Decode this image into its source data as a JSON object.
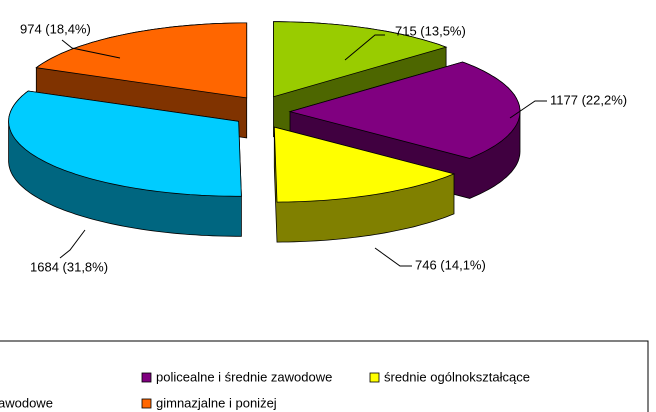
{
  "chart_data": {
    "type": "pie3d",
    "categories": [
      null,
      "policealne i średnie zawodowe",
      "średnie ogólnokształcące",
      "awodowe",
      "gimnazjalne i poniżej"
    ],
    "values": [
      715,
      1177,
      746,
      1684,
      974
    ],
    "value_labels": [
      "715 (13,5%)",
      "1177 (22,2%)",
      "746 (14,1%)",
      "1684 (31,8%)",
      "974 (18,4%)"
    ],
    "colors": [
      "#99cc00",
      "#800080",
      "#ffff00",
      "#00ccff",
      "#ff6600"
    ]
  }
}
